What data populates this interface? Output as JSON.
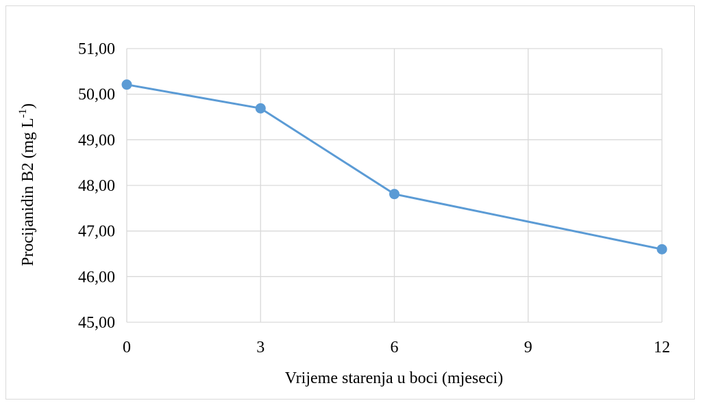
{
  "chart_data": {
    "type": "line",
    "x": [
      "0",
      "3",
      "6",
      "9",
      "12"
    ],
    "series": [
      {
        "values": [
          50.21,
          49.69,
          47.81,
          null,
          46.6
        ],
        "color": "#5b9bd5"
      }
    ],
    "xlabel": "Vrijeme starenja u boci (mjeseci)",
    "ylabel_main": "Procijanidin B2 (mg L",
    "ylabel_sup": "-1",
    "ylabel_end": ")",
    "yticks": [
      "45,00",
      "46,00",
      "47,00",
      "48,00",
      "49,00",
      "50,00",
      "51,00"
    ],
    "ylim": [
      45,
      51
    ],
    "grid": true,
    "gridColor": "#d9d9d9"
  }
}
